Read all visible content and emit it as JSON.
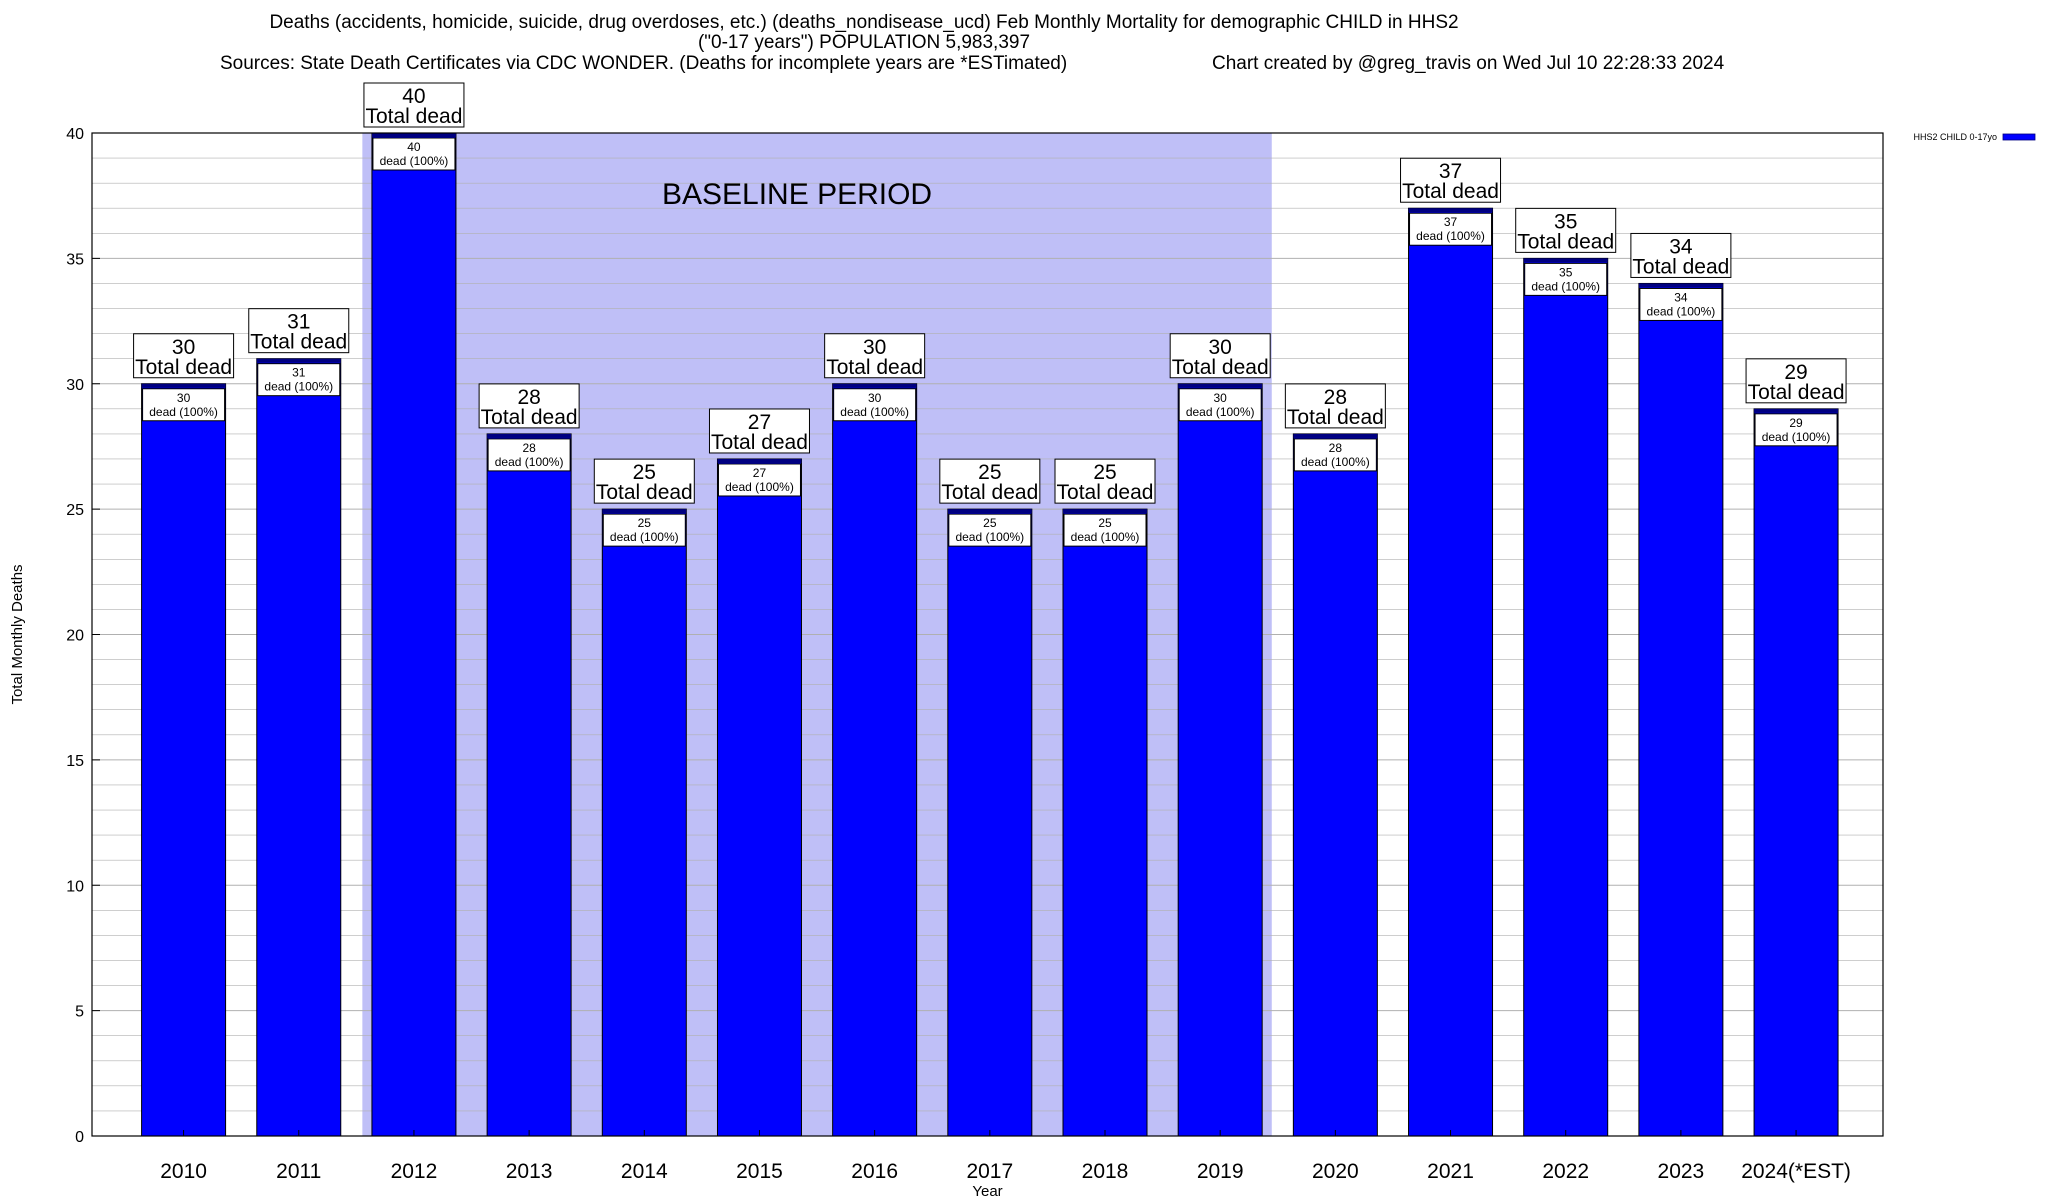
{
  "header": {
    "title_line1": "Deaths (accidents, homicide, suicide, drug overdoses, etc.) (deaths_nondisease_ucd) Feb Monthly Mortality for demographic CHILD in HHS2",
    "title_line2": "(\"0-17 years\") POPULATION 5,983,397",
    "sources": "Sources: State Death Certificates via CDC WONDER. (Deaths for incomplete years are *ESTimated)",
    "credit": "Chart created by @greg_travis on Wed Jul 10 22:28:33 2024"
  },
  "chart_data": {
    "type": "bar",
    "categories": [
      "2010",
      "2011",
      "2012",
      "2013",
      "2014",
      "2015",
      "2016",
      "2017",
      "2018",
      "2019",
      "2020",
      "2021",
      "2022",
      "2023",
      "2024(*EST)"
    ],
    "series": [
      {
        "name": "HHS2 CHILD 0-17yo",
        "values": [
          30,
          31,
          40,
          28,
          25,
          27,
          30,
          25,
          25,
          30,
          28,
          37,
          35,
          34,
          29
        ],
        "color": "#0000ff"
      }
    ],
    "xlabel": "Year",
    "ylabel": "Total Monthly Deaths",
    "ylim": [
      0,
      40
    ],
    "yticks": [
      0,
      5,
      10,
      15,
      20,
      25,
      30,
      35,
      40
    ],
    "grid": true,
    "legend_position": "top-right",
    "baseline": {
      "label": "BASELINE PERIOD",
      "start": "2012",
      "end": "2019",
      "color": "#bfbff7"
    },
    "total_label_text": "Total dead",
    "inner_label_text": "dead (100%)",
    "colors": {
      "bar": "#0000ff",
      "bar_edge": "#000080",
      "baseline_fill": "#bfbff7",
      "grid": "#b0b0b0"
    }
  }
}
